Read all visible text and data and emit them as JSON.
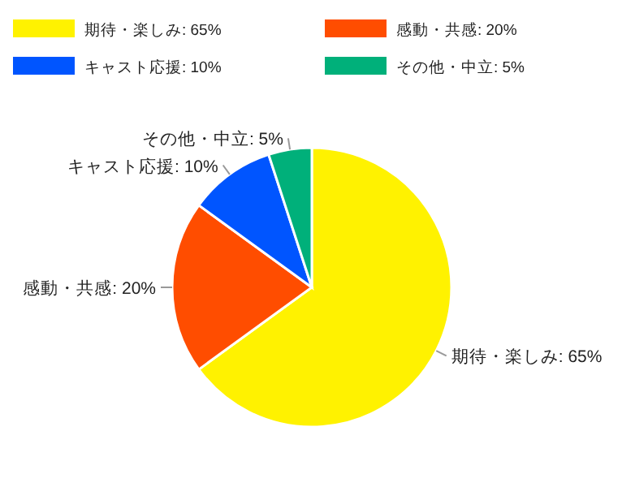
{
  "chart_data": {
    "type": "pie",
    "categories": [
      "期待・楽しみ: 65%",
      "感動・共感: 20%",
      "キャスト応援: 10%",
      "その他・中立: 5%"
    ],
    "values": [
      65,
      20,
      10,
      5
    ],
    "colors": [
      "#fff200",
      "#ff4d00",
      "#0055ff",
      "#00b07a"
    ],
    "legend": "top"
  }
}
